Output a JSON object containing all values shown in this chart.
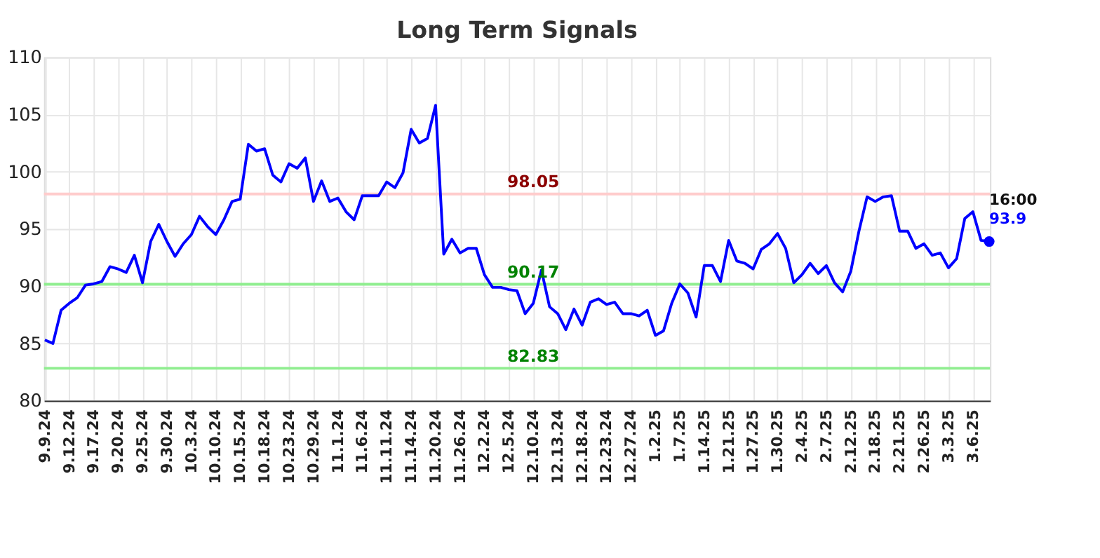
{
  "chart_data": {
    "type": "line",
    "title": "Long Term Signals",
    "categories": [
      "9.9.24",
      null,
      null,
      "9.12.24",
      null,
      null,
      "9.17.24",
      null,
      null,
      "9.20.24",
      null,
      null,
      "9.25.24",
      null,
      null,
      "9.30.24",
      null,
      null,
      "10.3.24",
      null,
      null,
      "10.10.24",
      null,
      null,
      "10.15.24",
      null,
      null,
      "10.18.24",
      null,
      null,
      "10.23.24",
      null,
      null,
      "10.29.24",
      null,
      null,
      "11.1.24",
      null,
      null,
      "11.6.24",
      null,
      null,
      "11.11.24",
      null,
      null,
      "11.14.24",
      null,
      null,
      "11.20.24",
      null,
      null,
      "11.26.24",
      null,
      null,
      "12.2.24",
      null,
      null,
      "12.5.24",
      null,
      null,
      "12.10.24",
      null,
      null,
      "12.13.24",
      null,
      null,
      "12.18.24",
      null,
      null,
      "12.23.24",
      null,
      null,
      "12.27.24",
      null,
      null,
      "1.2.25",
      null,
      null,
      "1.7.25",
      null,
      null,
      "1.14.25",
      null,
      null,
      "1.21.25",
      null,
      null,
      "1.27.25",
      null,
      null,
      "1.30.25",
      null,
      null,
      "2.4.25",
      null,
      null,
      "2.7.25",
      null,
      null,
      "2.12.25",
      null,
      null,
      "2.18.25",
      null,
      null,
      "2.21.25",
      null,
      null,
      "2.26.25",
      null,
      null,
      "3.3.25",
      null,
      null,
      "3.6.25",
      null,
      null
    ],
    "series": [
      {
        "color": "#0000ff",
        "values": [
          85.3,
          85.0,
          87.9,
          88.5,
          89.0,
          90.1,
          90.2,
          90.4,
          91.7,
          91.5,
          91.2,
          92.7,
          90.3,
          93.9,
          95.4,
          93.9,
          92.6,
          93.7,
          94.5,
          96.1,
          95.2,
          94.5,
          95.8,
          97.4,
          97.6,
          102.4,
          101.8,
          102.0,
          99.7,
          99.1,
          100.7,
          100.3,
          101.2,
          97.4,
          99.2,
          97.4,
          97.7,
          96.5,
          95.8,
          97.9,
          97.9,
          97.9,
          99.1,
          98.6,
          99.9,
          103.7,
          102.5,
          102.9,
          105.8,
          92.8,
          94.1,
          92.9,
          93.3,
          93.3,
          91.0,
          89.9,
          89.9,
          89.7,
          89.6,
          87.6,
          88.5,
          91.4,
          88.2,
          87.6,
          86.2,
          88.0,
          86.6,
          88.6,
          88.9,
          88.4,
          88.6,
          87.6,
          87.6,
          87.4,
          87.9,
          85.7,
          86.1,
          88.5,
          90.2,
          89.4,
          87.3,
          91.8,
          91.8,
          90.4,
          94.0,
          92.2,
          92.0,
          91.5,
          93.2,
          93.7,
          94.6,
          93.3,
          90.3,
          91.0,
          92.0,
          91.1,
          91.8,
          90.3,
          89.5,
          91.3,
          94.8,
          97.8,
          97.4,
          97.8,
          97.9,
          94.8,
          94.8,
          93.3,
          93.7,
          92.7,
          92.9,
          91.6,
          92.4,
          95.9,
          96.5,
          94.0,
          93.9
        ]
      }
    ],
    "ylim": [
      80,
      110
    ],
    "yticks": [
      80,
      85,
      90,
      95,
      100,
      105,
      110
    ],
    "grid": true,
    "line_style": "solid",
    "ref_lines": [
      {
        "axis": "y",
        "value": 98.05,
        "label": "98.05",
        "color": "#ffcccc"
      },
      {
        "axis": "y",
        "value": 90.17,
        "label": "90.17",
        "color": "#90ee90"
      },
      {
        "axis": "y",
        "value": 82.83,
        "label": "82.83",
        "color": "#90ee90"
      }
    ],
    "annotations": [
      "16:00",
      "93.9"
    ]
  }
}
